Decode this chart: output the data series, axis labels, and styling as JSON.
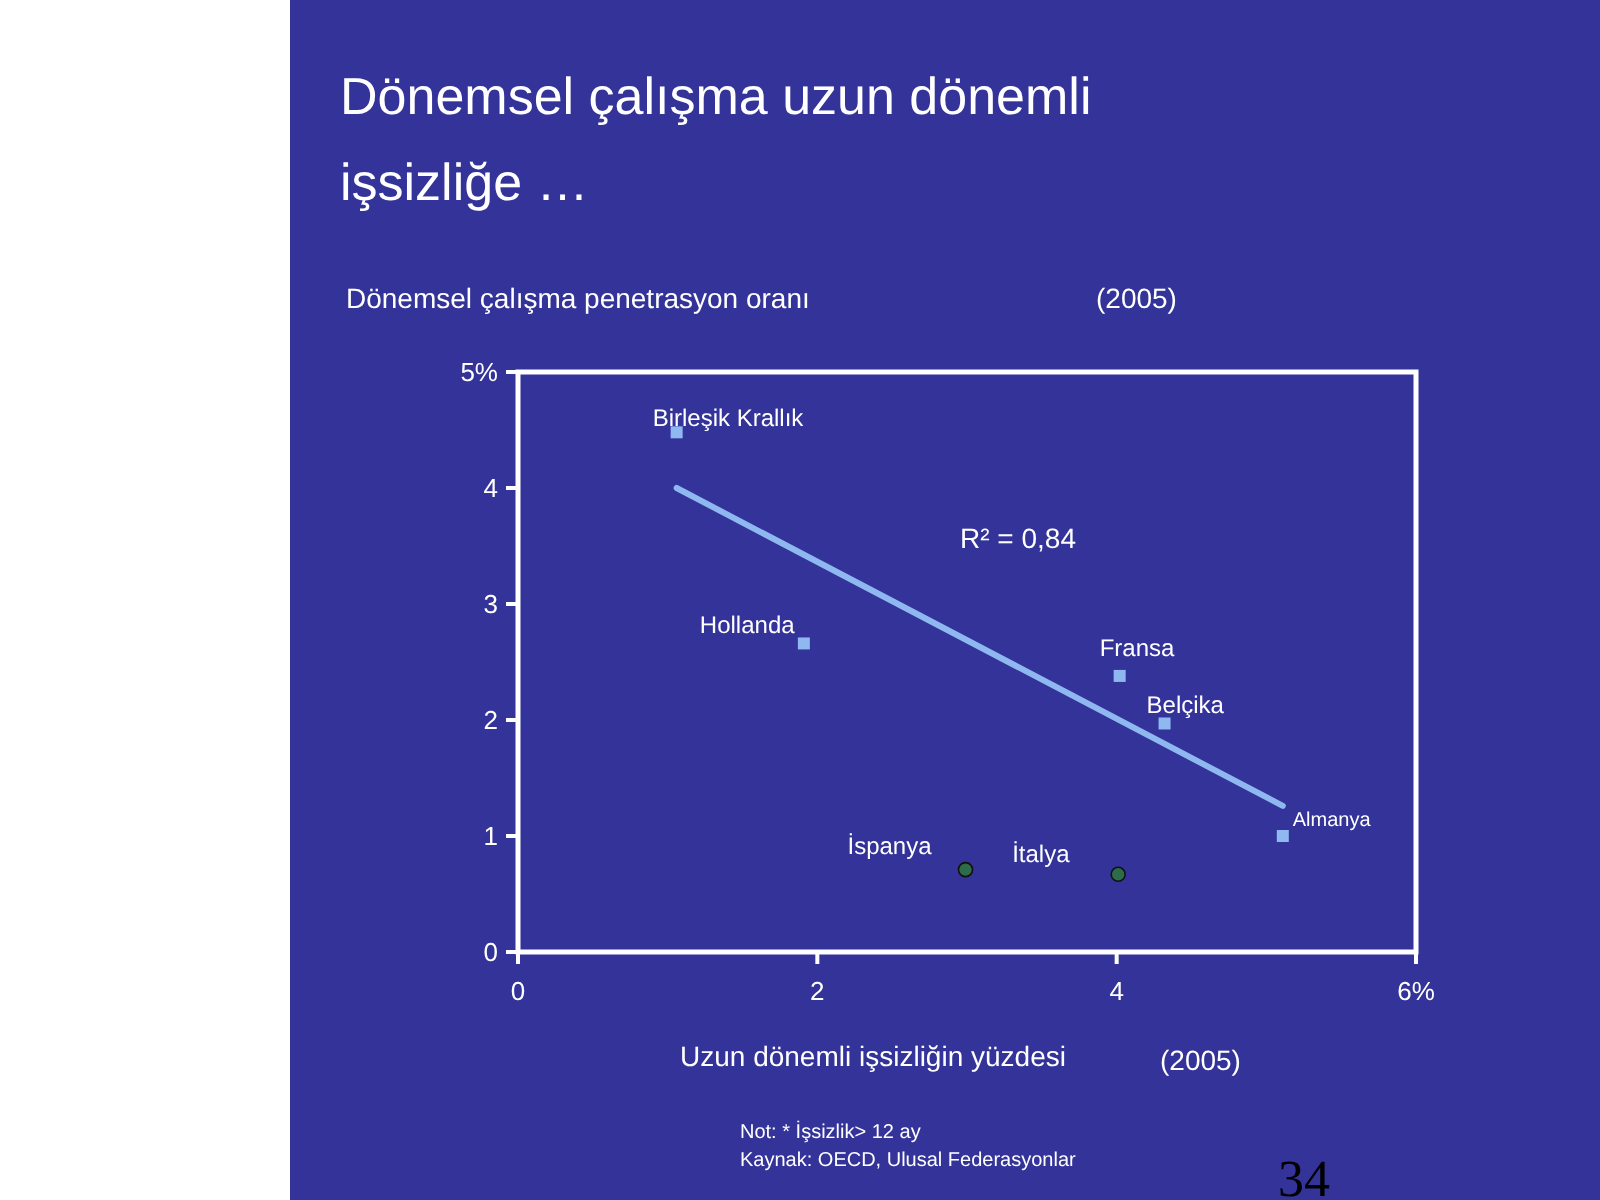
{
  "chart_data": {
    "type": "scatter",
    "title": "Dönemsel çalışma uzun dönemli\nişsizliğe …",
    "ylabel": "Dönemsel çalışma penetrasyon oranı",
    "xlabel": "Uzun dönemli işsizliğin yüzdesi",
    "series": [
      {
        "color": "#8fb8f0",
        "marker": "square",
        "x": [
          1.06,
          1.91,
          4.02,
          4.32,
          5.11
        ],
        "values": [
          4.48,
          2.66,
          2.38,
          1.97,
          1.0
        ]
      },
      {
        "color": "#2e6b4a",
        "marker": "circle",
        "x": [
          2.99,
          4.01
        ],
        "values": [
          0.71,
          0.67
        ]
      },
      {
        "type": "line",
        "color": "#8fb8f0",
        "x": [
          1.06,
          5.11
        ],
        "values": [
          4.0,
          1.26
        ]
      }
    ],
    "xlim": [
      0,
      6
    ],
    "xticks": [
      0,
      2,
      4,
      {
        "value": 6,
        "label": "6%"
      }
    ],
    "ylim": [
      0,
      5
    ],
    "yticks": [
      0,
      1,
      2,
      3,
      4,
      {
        "value": 5,
        "label": "5%"
      }
    ],
    "grid": false,
    "annotations": [
      "(2005)",
      "(2005)",
      "R² = 0,84",
      "Not: * İşsizlik> 12 ay",
      "Kaynak: OECD, Ulusal Federasyonlar",
      "34",
      {
        "text": "Birleşik Krallık",
        "x": 1.06,
        "y": 4.48
      },
      {
        "text": "Hollanda",
        "x": 1.91,
        "y": 2.66
      },
      {
        "text": "Fransa",
        "x": 4.02,
        "y": 2.38
      },
      {
        "text": "Belçika",
        "x": 4.32,
        "y": 1.97
      },
      {
        "text": "Almanya",
        "x": 5.11,
        "y": 1.0
      },
      {
        "text": "İspanya",
        "x": 2.99,
        "y": 0.71
      },
      {
        "text": "İtalya",
        "x": 4.01,
        "y": 0.67
      }
    ]
  }
}
